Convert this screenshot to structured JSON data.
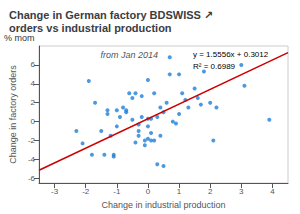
{
  "chart_data": {
    "type": "scatter",
    "title": "Change in German factory BDSWISS ↗\norders vs industrial production",
    "subtitle": "from Jan 2014",
    "xlabel": "Change in industrial production",
    "ylabel": "Change in factory orders",
    "annotations": [
      "% mom",
      "y = 1.5556x + 0.3012",
      "R² = 0.6989"
    ],
    "xlim": [
      -3.5,
      4.5
    ],
    "ylim": [
      -6.5,
      8.0
    ],
    "xticks": [
      -3,
      -2,
      -1,
      0,
      1,
      2,
      3,
      4
    ],
    "yticks": [
      -6,
      -4,
      -2,
      0,
      2,
      4,
      6
    ],
    "grid": false,
    "series": [
      {
        "type": "scatter",
        "color": "#1E7FD8",
        "x": [
          -2.3,
          -2.1,
          -1.9,
          -1.8,
          -1.7,
          -1.5,
          -1.4,
          -1.3,
          -1.3,
          -1.2,
          -1.1,
          -1.1,
          -1.0,
          -1.0,
          -0.9,
          -0.8,
          -0.7,
          -0.7,
          -0.6,
          -0.5,
          -0.5,
          -0.4,
          -0.4,
          -0.3,
          -0.3,
          -0.3,
          -0.2,
          -0.2,
          -0.1,
          -0.1,
          0.0,
          0.0,
          0.0,
          0.0,
          0.1,
          0.1,
          0.1,
          0.2,
          0.2,
          0.3,
          0.3,
          0.4,
          0.4,
          0.5,
          0.5,
          0.6,
          0.7,
          0.7,
          0.8,
          0.9,
          1.0,
          1.0,
          1.1,
          1.2,
          1.3,
          1.5,
          1.6,
          1.7,
          1.8,
          2.0,
          2.1,
          2.2,
          3.0,
          3.1,
          3.9
        ],
        "values": [
          -1.0,
          -2.3,
          4.3,
          -3.5,
          2.0,
          -1.0,
          -3.5,
          0.8,
          1.2,
          -1.5,
          -3.5,
          -3.7,
          1.2,
          -0.5,
          0.5,
          1.5,
          1.0,
          1.2,
          3.0,
          0.2,
          2.5,
          3.0,
          -2.2,
          -1.5,
          -1.0,
          -0.3,
          2.7,
          0.5,
          -2.0,
          -2.5,
          -1.8,
          -0.5,
          0.3,
          4.4,
          -2.0,
          -1.2,
          0.3,
          -2.0,
          3.0,
          0.5,
          -4.5,
          1.5,
          -1.5,
          -4.7,
          1.0,
          2.0,
          6.8,
          5.0,
          0.0,
          -0.2,
          0.8,
          5.0,
          3.0,
          2.3,
          1.5,
          3.5,
          2.5,
          1.8,
          5.3,
          2.0,
          -2.0,
          1.5,
          6.0,
          3.8,
          0.2
        ]
      },
      {
        "type": "line",
        "color": "#CC0000",
        "x": [
          -3.5,
          4.5
        ],
        "values": [
          -5.1434,
          7.3014
        ]
      }
    ]
  }
}
